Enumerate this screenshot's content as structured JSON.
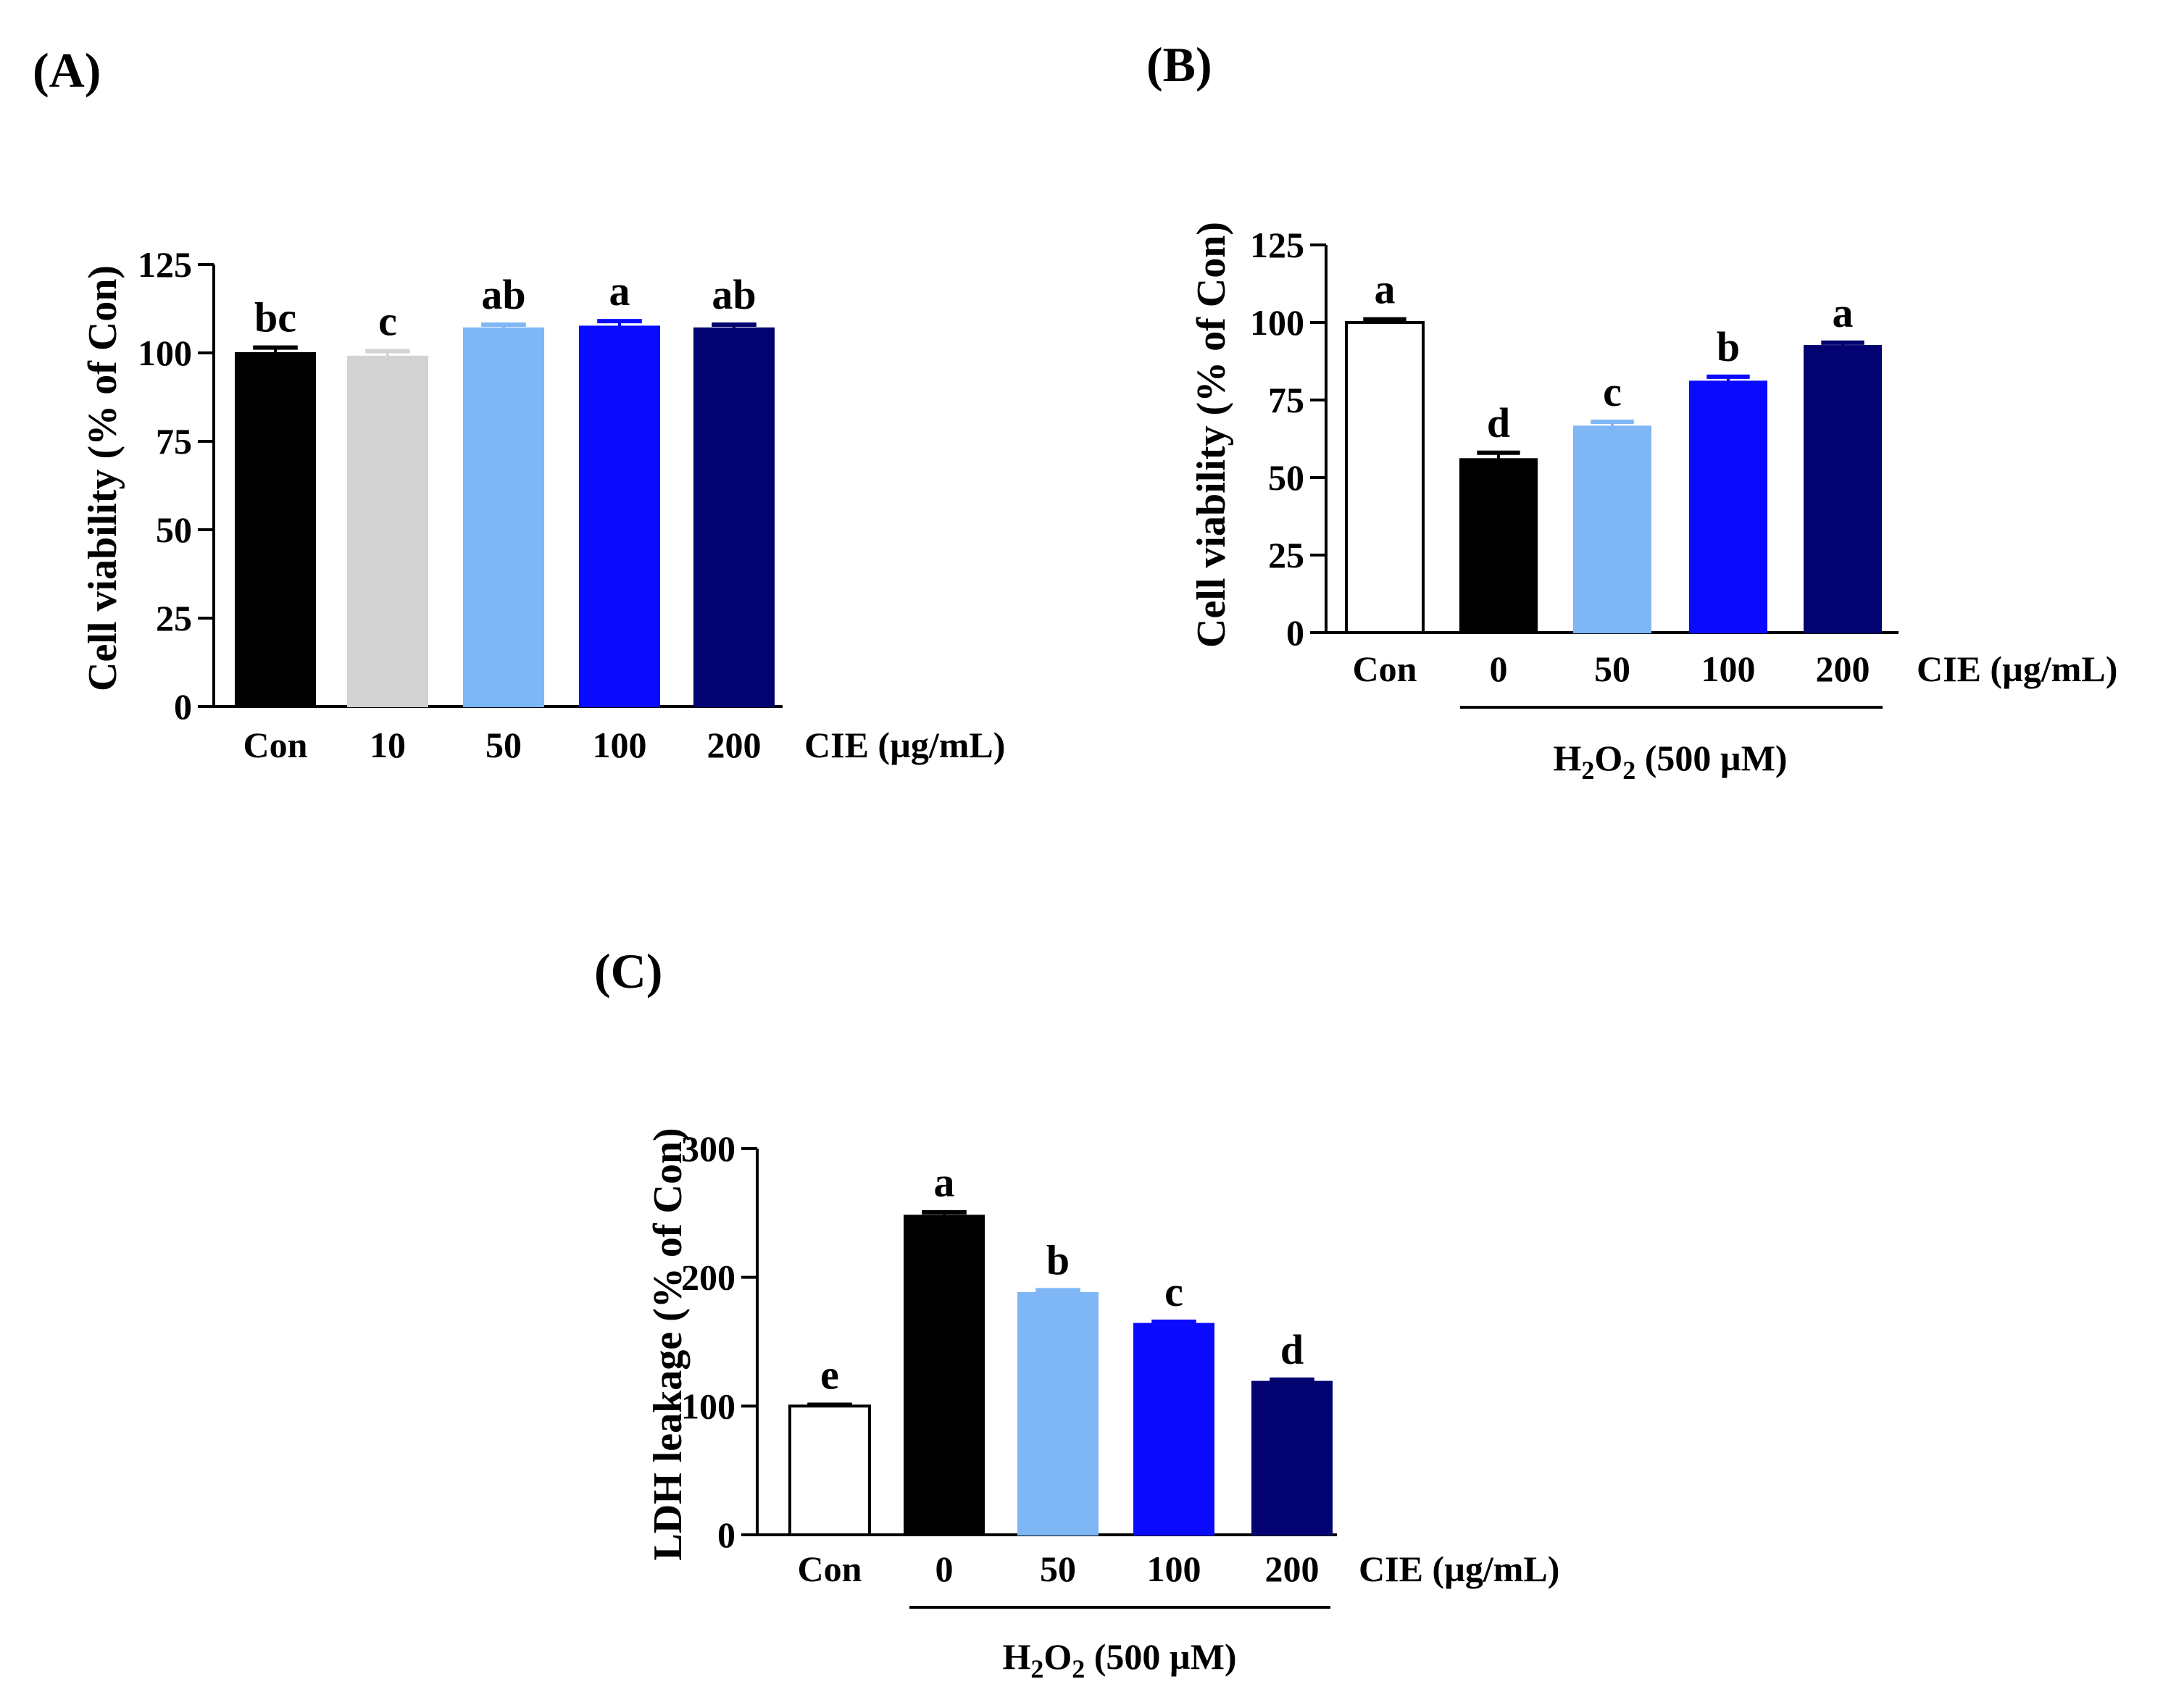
{
  "chart_data": [
    {
      "panel": "(A)",
      "type": "bar",
      "categories": [
        "Con",
        "10",
        "50",
        "100",
        "200"
      ],
      "values": [
        100,
        99,
        107,
        107.5,
        107
      ],
      "errors": [
        1.5,
        1.5,
        1.0,
        1.5,
        1.0
      ],
      "significance": [
        "bc",
        "c",
        "ab",
        "a",
        "ab"
      ],
      "colors": [
        "#000000",
        "#d3d3d3",
        "#7fb6f5",
        "#0a0aff",
        "#020270"
      ],
      "outline": [
        "#000000",
        "#d3d3d3",
        "#7fb6f5",
        "#0a0aff",
        "#020270"
      ],
      "ylabel": "Cell viability (% of Con)",
      "xunit": "CIE (µg/mL)",
      "ylim": [
        0,
        125
      ],
      "yticks": [
        0,
        25,
        50,
        75,
        100,
        125
      ],
      "group_label_main": "",
      "group_label_sub": "",
      "group_label_paren": ""
    },
    {
      "panel": "(B)",
      "type": "bar",
      "categories": [
        "Con",
        "0",
        "50",
        "100",
        "200"
      ],
      "values": [
        100,
        56,
        66.5,
        81,
        92.5
      ],
      "errors": [
        1.0,
        2.0,
        1.5,
        1.5,
        1.0
      ],
      "significance": [
        "a",
        "d",
        "c",
        "b",
        "a"
      ],
      "colors": [
        "#ffffff",
        "#000000",
        "#7fb6f5",
        "#0a0aff",
        "#020270"
      ],
      "outline": [
        "#000000",
        "#000000",
        "#7fb6f5",
        "#0a0aff",
        "#020270"
      ],
      "ylabel": "Cell viability (% of Con)",
      "xunit": "CIE (µg/mL)",
      "ylim": [
        0,
        125
      ],
      "yticks": [
        0,
        25,
        50,
        75,
        100,
        125
      ],
      "group_label_main": "H",
      "group_label_sub": "2",
      "group_label_o": "O",
      "group_label_paren": "(500 µM)"
    },
    {
      "panel": "(C)",
      "type": "bar",
      "categories": [
        "Con",
        "0",
        "50",
        "100",
        "200"
      ],
      "values": [
        100,
        248,
        188,
        164,
        119
      ],
      "errors": [
        1.0,
        2.5,
        2.0,
        1.5,
        1.5
      ],
      "significance": [
        "e",
        "a",
        "b",
        "c",
        "d"
      ],
      "colors": [
        "#ffffff",
        "#000000",
        "#7fb6f5",
        "#0a0aff",
        "#020270"
      ],
      "outline": [
        "#000000",
        "#000000",
        "#7fb6f5",
        "#0a0aff",
        "#020270"
      ],
      "ylabel": "LDH leakage (% of Con)",
      "xunit": "CIE (µg/mL)",
      "ylim": [
        0,
        300
      ],
      "yticks": [
        0,
        100,
        200,
        300
      ],
      "group_label_main": "H",
      "group_label_sub": "2",
      "group_label_o": "O",
      "group_label_paren": "(500 µM)"
    }
  ]
}
